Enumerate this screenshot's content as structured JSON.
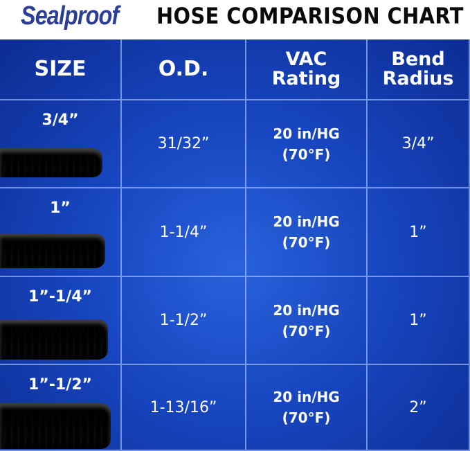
{
  "header": {
    "brand": "Sealproof",
    "title": "HOSE COMPARISON CHART"
  },
  "table": {
    "columns": [
      "SIZE",
      "O.D.",
      "VAC\nRating",
      "Bend\nRadius"
    ],
    "rows": [
      [
        "3/4”",
        "31/32”",
        "20 in/HG\n(70°F)",
        "3/4”"
      ],
      [
        "1”",
        "1-1/4”",
        "20 in/HG\n(70°F)",
        "1”"
      ],
      [
        "1”-1/4”",
        "1-1/2”",
        "20 in/HG\n(70°F)",
        "1”"
      ],
      [
        "1”-1/2”",
        "1-13/16”",
        "20 in/HG\n(70°F)",
        "2”"
      ]
    ]
  }
}
